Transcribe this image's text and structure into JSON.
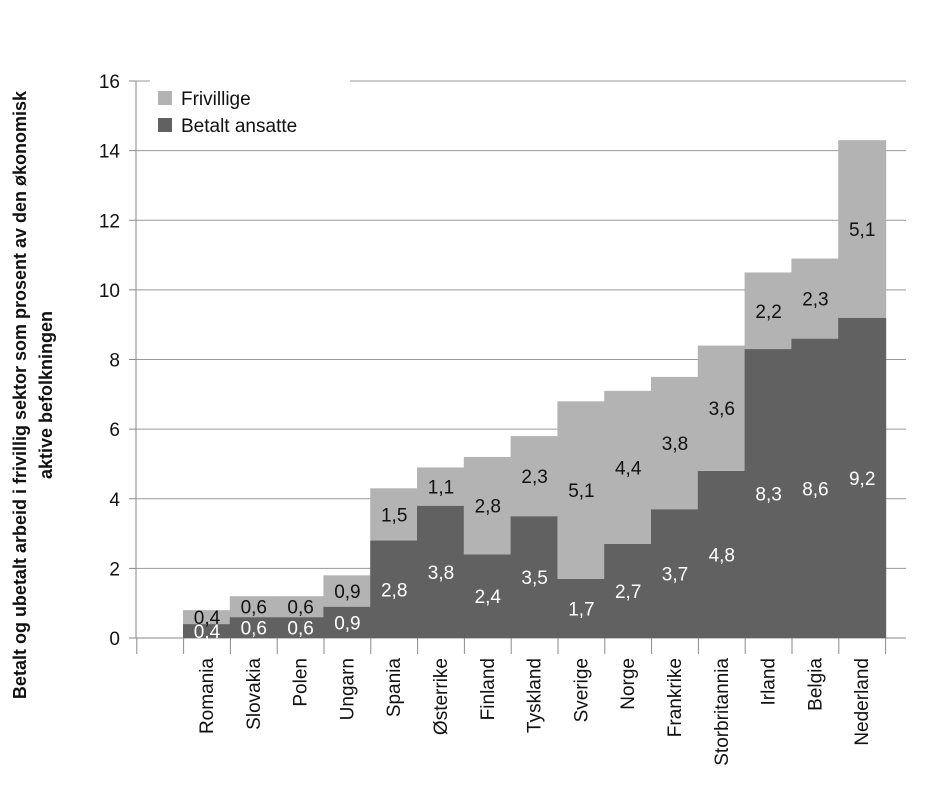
{
  "chart_data": {
    "type": "bar",
    "stacked": true,
    "categories": [
      "Romania",
      "Slovakia",
      "Polen",
      "Ungarn",
      "Spania",
      "Østerrike",
      "Finland",
      "Tyskland",
      "Sverige",
      "Norge",
      "Frankrike",
      "Storbritannia",
      "Irland",
      "Belgia",
      "Nederland"
    ],
    "series": [
      {
        "name": "Betalt ansatte",
        "color": "#616161",
        "label_color": "#ffffff",
        "values": [
          0.4,
          0.6,
          0.6,
          0.9,
          2.8,
          3.8,
          2.4,
          3.5,
          1.7,
          2.7,
          3.7,
          4.8,
          8.3,
          8.6,
          9.2
        ],
        "labels": [
          "0,4",
          "0,6",
          "0,6",
          "0,9",
          "2,8",
          "3,8",
          "2,4",
          "3,5",
          "1,7",
          "2,7",
          "3,7",
          "4,8",
          "8,3",
          "8,6",
          "9,2"
        ]
      },
      {
        "name": "Frivillige",
        "color": "#b3b3b3",
        "label_color": "#111111",
        "values": [
          0.4,
          0.6,
          0.6,
          0.9,
          1.5,
          1.1,
          2.8,
          2.3,
          5.1,
          4.4,
          3.8,
          3.6,
          2.2,
          2.3,
          5.1
        ],
        "labels": [
          "0,4",
          "0,6",
          "0,6",
          "0,9",
          "1,5",
          "1,1",
          "2,8",
          "2,3",
          "5,1",
          "4,4",
          "3,8",
          "3,6",
          "2,2",
          "2,3",
          "5,1"
        ]
      }
    ],
    "title": "",
    "xlabel": "",
    "ylabel_lines": [
      "Betalt og ubetalt arbeid i frivillig sektor som prosent av den økonomisk",
      "aktive befolkningen"
    ],
    "ylim": [
      0,
      16
    ],
    "yticks": [
      0,
      2,
      4,
      6,
      8,
      10,
      12,
      14,
      16
    ],
    "grid": true,
    "legend": {
      "placement": "top-left",
      "order": [
        "Frivillige",
        "Betalt ansatte"
      ]
    }
  }
}
